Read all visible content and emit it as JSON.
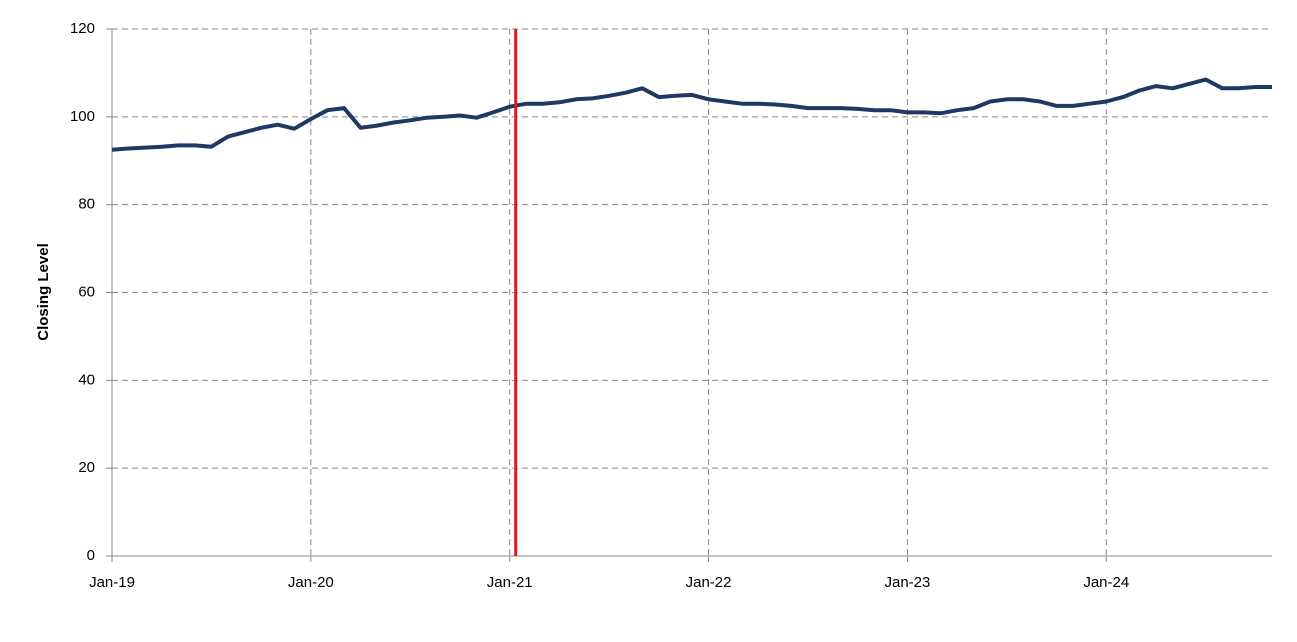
{
  "chart_data": {
    "type": "line",
    "y_label": "Closing Level",
    "categories": [
      "Jan-19",
      null,
      null,
      null,
      null,
      null,
      null,
      null,
      null,
      null,
      null,
      null,
      "Jan-20",
      null,
      null,
      null,
      null,
      null,
      null,
      null,
      null,
      null,
      null,
      null,
      "Jan-21",
      null,
      null,
      null,
      null,
      null,
      null,
      null,
      null,
      null,
      null,
      null,
      "Jan-22",
      null,
      null,
      null,
      null,
      null,
      null,
      null,
      null,
      null,
      null,
      null,
      "Jan-23",
      null,
      null,
      null,
      null,
      null,
      null,
      null,
      null,
      null,
      null,
      null,
      "Jan-24",
      null,
      null,
      null,
      null,
      null,
      null,
      null,
      null,
      null,
      null
    ],
    "values": [
      92.5,
      92.8,
      93,
      93.2,
      93.5,
      93.5,
      93.2,
      95.5,
      96.5,
      97.5,
      98.2,
      97.3,
      99.5,
      101.5,
      102,
      97.5,
      98,
      98.7,
      99.2,
      99.8,
      100,
      100.3,
      99.8,
      101,
      102.3,
      103,
      103,
      103.3,
      104,
      104.2,
      104.8,
      105.5,
      106.5,
      104.5,
      104.8,
      105,
      104,
      103.5,
      103,
      103,
      102.8,
      102.5,
      102,
      102,
      102,
      101.8,
      101.5,
      101.5,
      101,
      101,
      100.8,
      101.5,
      102,
      103.5,
      104,
      104,
      103.5,
      102.5,
      102.5,
      103,
      103.5,
      104.5,
      106,
      107,
      106.5,
      107.5,
      108.5,
      106.5,
      106.5,
      106.8,
      106.8
    ],
    "color": "#1f3864",
    "ylim": [
      0,
      120
    ],
    "yticks": [
      0,
      20,
      40,
      60,
      80,
      100,
      120
    ],
    "grid": true,
    "vline": {
      "x": "Jan-21",
      "color": "#e8141b"
    }
  }
}
